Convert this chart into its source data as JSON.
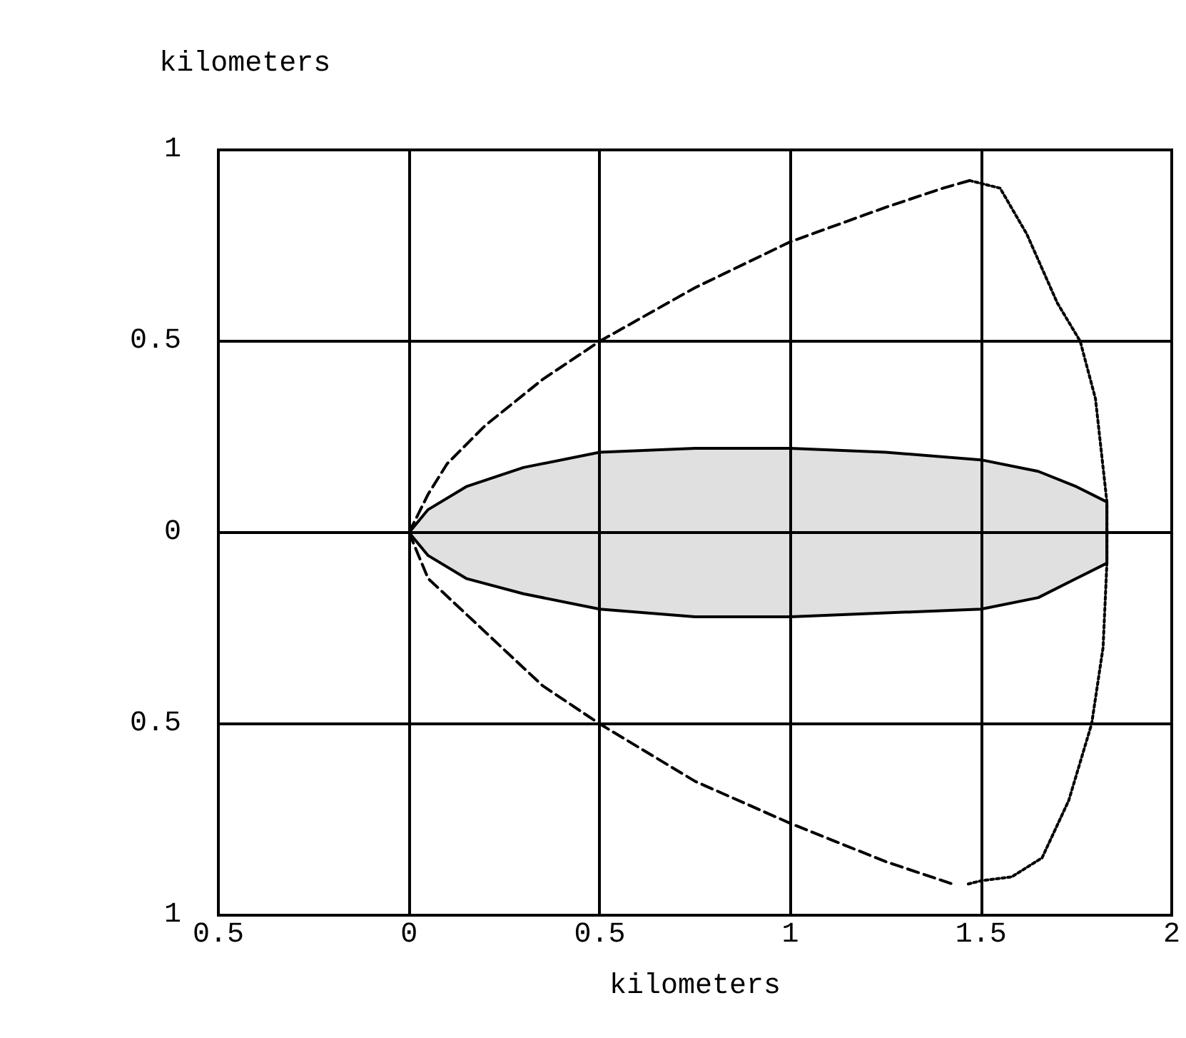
{
  "chart_data": {
    "type": "line",
    "xlabel": "kilometers",
    "ylabel": "kilometers",
    "xlim": [
      -0.5,
      2
    ],
    "ylim": [
      -1,
      1
    ],
    "xticks": [
      {
        "value": -0.5,
        "label": "0.5"
      },
      0,
      0.5,
      1,
      1.5,
      2
    ],
    "yticks": [
      {
        "value": -1,
        "label": "1"
      },
      {
        "value": -0.5,
        "label": "0.5"
      },
      0,
      0.5,
      1
    ],
    "grid": true,
    "marker": "none",
    "series": [
      {
        "type": "area",
        "color": "#000000",
        "line_style": "solid",
        "x": [
          0,
          0.05,
          0.15,
          0.3,
          0.5,
          0.75,
          1,
          1.25,
          1.5,
          1.65,
          1.75,
          1.83,
          1.83
        ],
        "values": [
          0,
          0.06,
          0.12,
          0.17,
          0.21,
          0.22,
          0.22,
          0.21,
          0.19,
          0.16,
          0.12,
          0.08,
          0
        ]
      },
      {
        "type": "area",
        "color": "#000000",
        "line_style": "solid",
        "x": [
          0,
          0.05,
          0.15,
          0.3,
          0.5,
          0.75,
          1,
          1.25,
          1.5,
          1.65,
          1.75,
          1.83,
          1.83
        ],
        "values": [
          0,
          -0.06,
          -0.12,
          -0.16,
          -0.2,
          -0.22,
          -0.22,
          -0.21,
          -0.2,
          -0.17,
          -0.12,
          -0.08,
          0
        ]
      },
      {
        "type": "line",
        "color": "#000000",
        "line_style": "dashed",
        "x": [
          0,
          0.05,
          0.1,
          0.2,
          0.35,
          0.5,
          0.75,
          1,
          1.25,
          1.4,
          1.47
        ],
        "values": [
          0,
          0.1,
          0.18,
          0.28,
          0.4,
          0.5,
          0.64,
          0.76,
          0.85,
          0.9,
          0.92
        ]
      },
      {
        "type": "line",
        "color": "#000000",
        "line_style": "dashed",
        "x": [
          0,
          0.05,
          0.2,
          0.35,
          0.5,
          0.75,
          1,
          1.25,
          1.43
        ],
        "values": [
          0,
          -0.12,
          -0.26,
          -0.4,
          -0.5,
          -0.65,
          -0.76,
          -0.86,
          -0.92
        ]
      },
      {
        "type": "line",
        "color": "#000000",
        "line_style": "dotted",
        "x": [
          1.47,
          1.55,
          1.62,
          1.7,
          1.76,
          1.8,
          1.83,
          1.83,
          1.82,
          1.79,
          1.73,
          1.66,
          1.58,
          1.5,
          1.46
        ],
        "values": [
          0.92,
          0.9,
          0.78,
          0.6,
          0.5,
          0.35,
          0.08,
          -0.08,
          -0.3,
          -0.5,
          -0.7,
          -0.85,
          -0.9,
          -0.91,
          -0.92
        ]
      }
    ]
  }
}
